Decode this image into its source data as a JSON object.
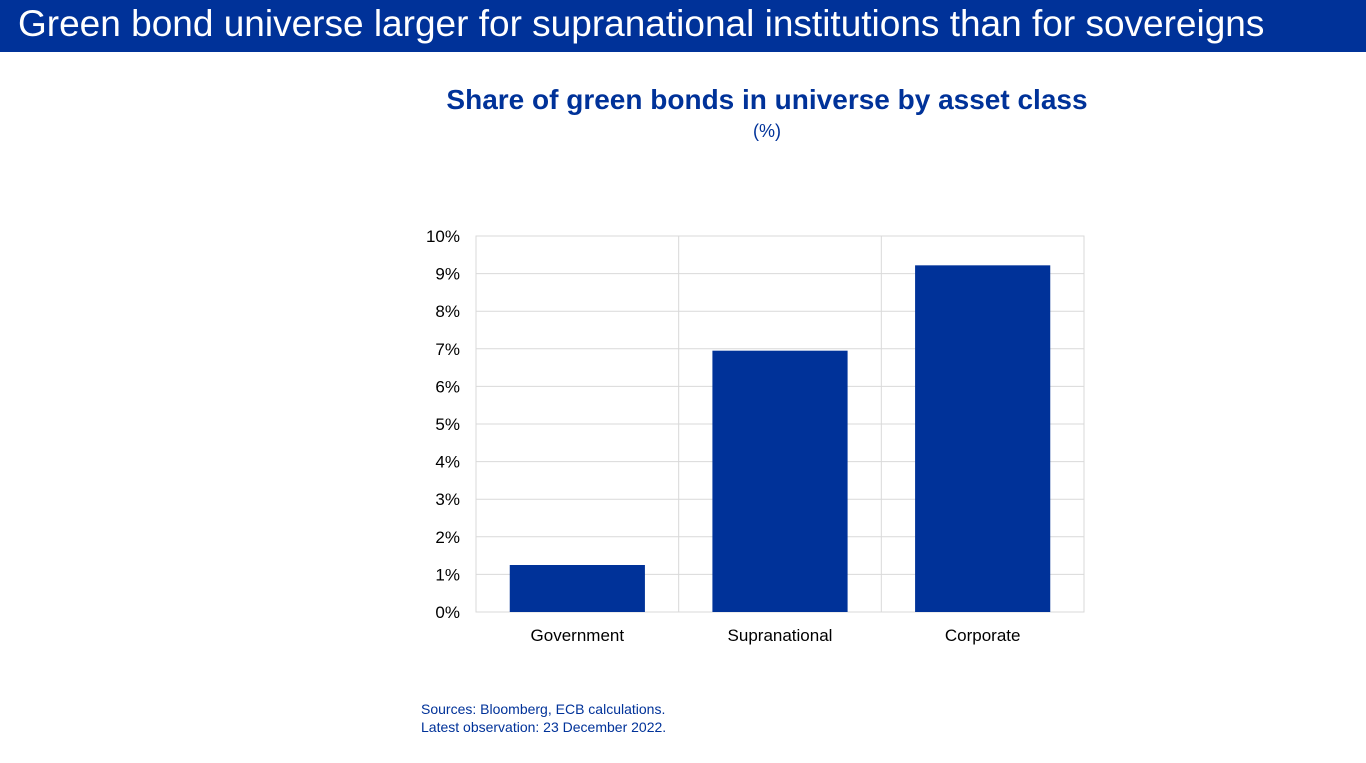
{
  "header": {
    "title": "Green bond universe larger for supranational institutions than for sovereigns"
  },
  "chart": {
    "title": "Share of green bonds in universe by asset class",
    "subtitle": "(%)"
  },
  "footnotes": {
    "sources": "Sources: Bloomberg, ECB calculations.",
    "latest": "Latest observation: 23 December 2022."
  },
  "colors": {
    "brand": "#003299",
    "bar": "#003299",
    "grid": "#d9d9d9"
  },
  "chart_data": {
    "type": "bar",
    "categories": [
      "Government",
      "Supranational",
      "Corporate"
    ],
    "values": [
      1.25,
      6.95,
      9.22
    ],
    "ylim": [
      0,
      10
    ],
    "y_ticks": [
      0,
      1,
      2,
      3,
      4,
      5,
      6,
      7,
      8,
      9,
      10
    ],
    "y_tick_format": "%",
    "grid": true,
    "xlabel": "",
    "ylabel": ""
  }
}
